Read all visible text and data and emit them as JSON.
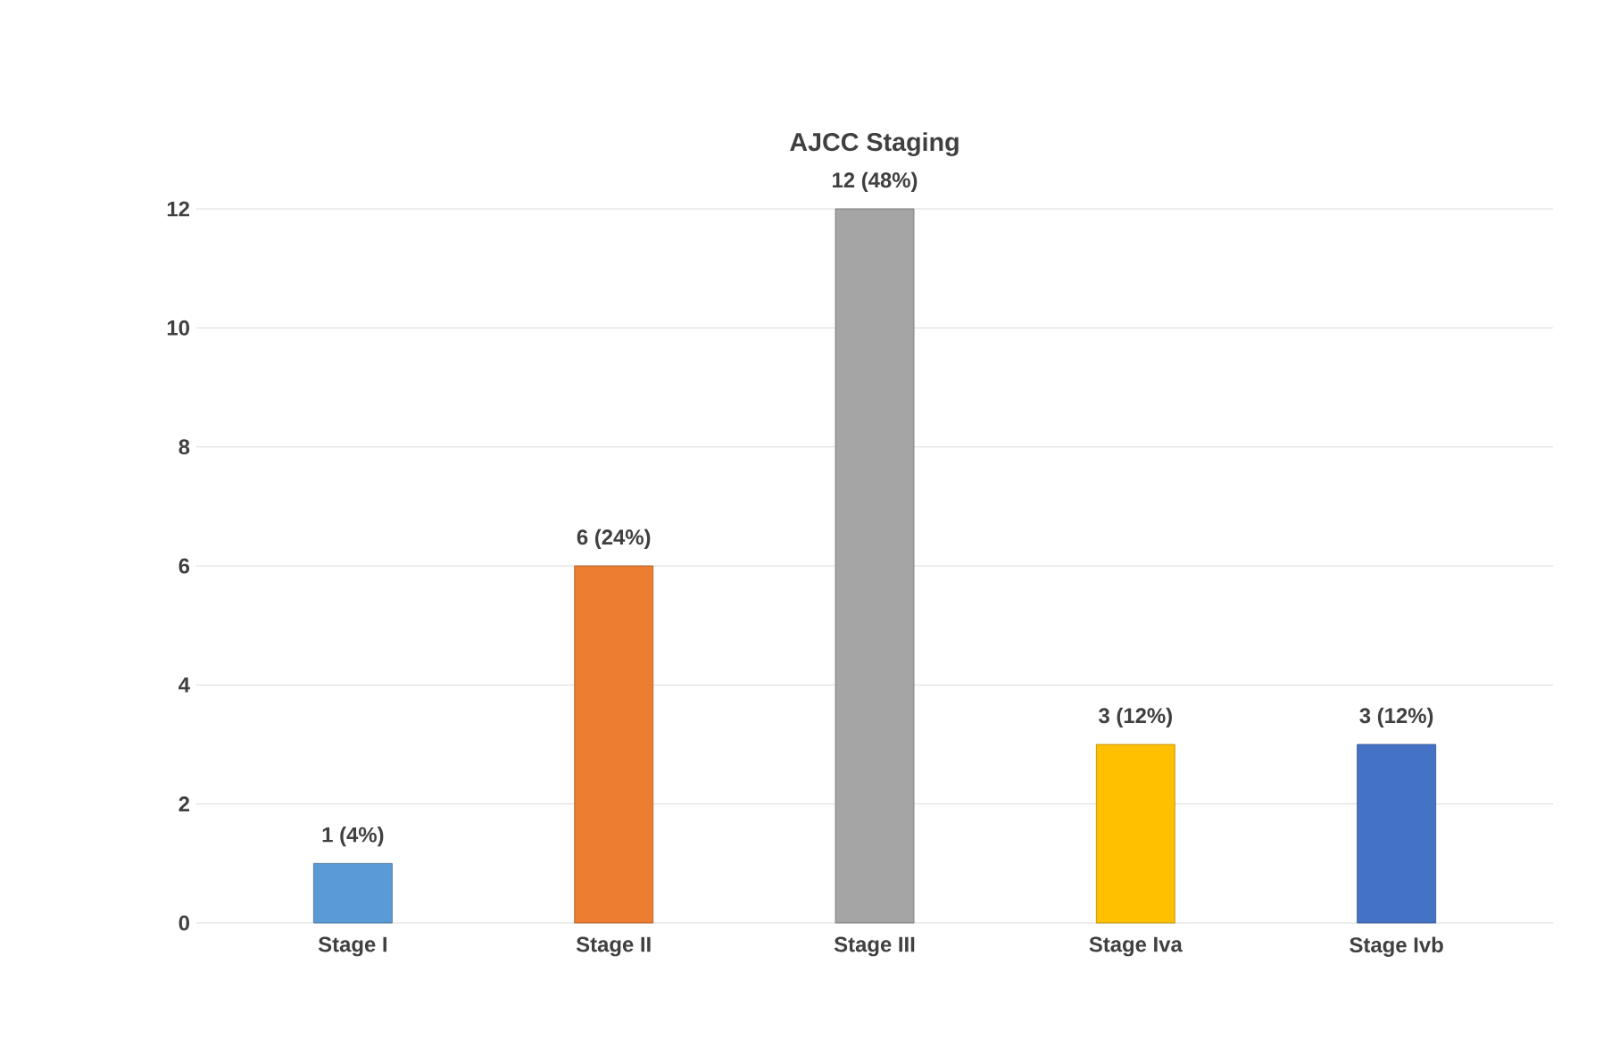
{
  "chart_data": {
    "type": "bar",
    "title": "AJCC Staging",
    "categories": [
      "Stage I",
      "Stage II",
      "Stage III",
      "Stage Iva",
      "Stage Ivb"
    ],
    "values": [
      1,
      6,
      12,
      3,
      3
    ],
    "colors": [
      "#5b9bd5",
      "#ed7d31",
      "#a5a5a5",
      "#ffc000",
      "#4472c4"
    ],
    "value_labels": [
      "1 (4%)",
      "6 (24%)",
      "12 (48%)",
      "3 (12%)",
      "3 (12%)"
    ],
    "ylim": [
      0,
      12
    ],
    "yticks": [
      0,
      2,
      4,
      6,
      8,
      10,
      12
    ],
    "grid": "y"
  }
}
